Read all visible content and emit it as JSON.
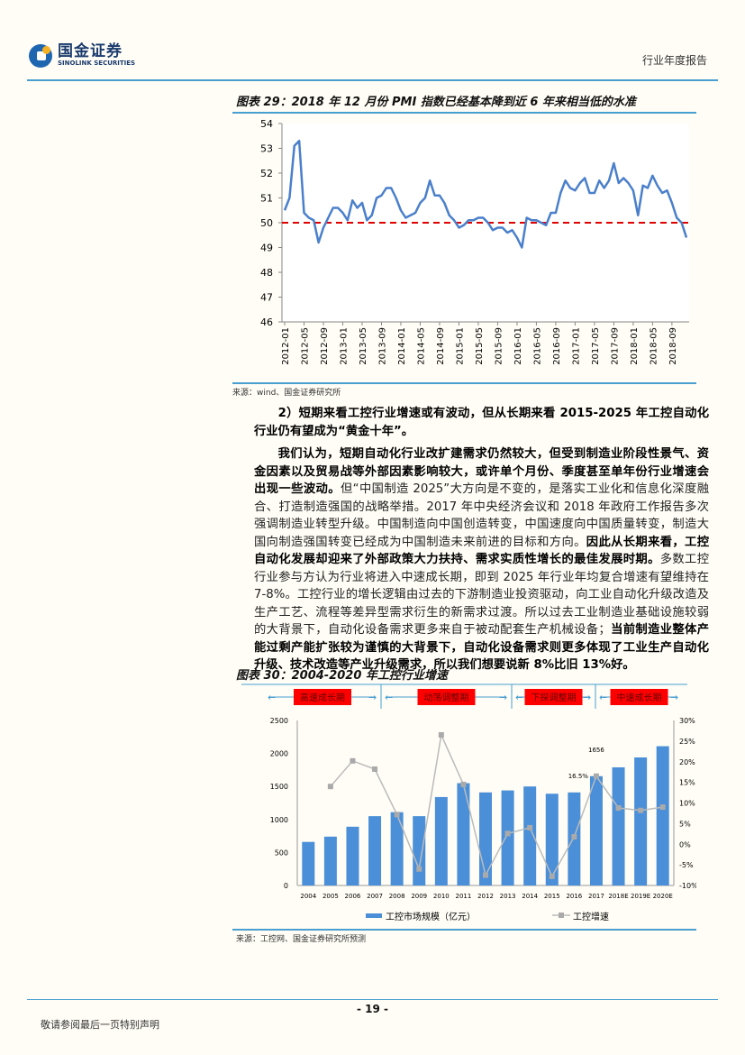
{
  "header": {
    "logo_cn": "国金证券",
    "logo_en": "SINOLINK SECURITIES",
    "report_type": "行业年度报告"
  },
  "figure29": {
    "title": "图表 29：2018 年 12 月份 PMI 指数已经基本降到近 6 年来相当低的水准",
    "source": "来源：wind、国金证券研究所"
  },
  "figure30": {
    "title": "图表 30：2004-2020 年工控行业增速",
    "source": "来源：工控网、国金证券研究所预测",
    "periods": [
      "高速成长期",
      "动荡调整期",
      "下探调整期",
      "中速成长期"
    ],
    "legend": [
      "工控市场规模（亿元）",
      "工控增速"
    ]
  },
  "paragraphs": [
    {
      "bold": "2）短期来看工控行业增速或有波动，但从长期来看 2015-2025 年工控自动化行业仍有望成为“黄金十年”。",
      "normal": ""
    },
    {
      "bold": "我们认为，短期自动化行业改扩建需求仍然较大，但受到制造业阶段性景气、资金因素以及贸易战等外部因素影响较大，或许单个月份、季度甚至单年份行业增速会出现一些波动。",
      "normal": "但“中国制造 2025”大方向是不变的，是落实工业化和信息化深度融合、打造制造强国的战略举措。2017 年中央经济会议和 2018 年政府工作报告多次强调制造业转型升级。中国制造向中国创造转变，中国速度向中国质量转变，制造大国向制造强国转变已经成为中国制造未来前进的目标和方向。",
      "bold2": "因此从长期来看，工控自动化发展却迎来了外部政策大力扶持、需求实质性增长的最佳发展时期。",
      "normal2": "多数工控行业参与方认为行业将进入中速成长期，即到 2025 年行业年均复合增速有望维持在 7-8%。工控行业的增长逻辑由过去的下游制造业投资驱动，向工业自动化升级改造及生产工艺、流程等差异型需求衍生的新需求过渡。所以过去工业制造业基础设施较弱的大背景下，自动化设备需求更多来自于被动配套生产机械设备；",
      "bold3": "当前制造业整体产能过剩产能扩张较为谨慎的大背景下，自动化设备需求则更多体现了工业生产自动化升级、技术改造等产业升级需求，所以我们想要说新 8%比旧 13%好。"
    }
  ],
  "footer": {
    "page": "- 19 -",
    "disclaimer": "敬请参阅最后一页特别声明"
  },
  "chart_data": [
    {
      "type": "line",
      "title": "",
      "ylim": [
        46,
        54
      ],
      "yticks": [
        46,
        47,
        48,
        49,
        50,
        51,
        52,
        53,
        54
      ],
      "xticks": [
        "2012-01",
        "2012-05",
        "2012-09",
        "2013-01",
        "2013-05",
        "2013-09",
        "2014-01",
        "2014-05",
        "2014-09",
        "2015-01",
        "2015-05",
        "2015-09",
        "2016-01",
        "2016-05",
        "2016-09",
        "2017-01",
        "2017-05",
        "2017-09",
        "2018-01",
        "2018-05",
        "2018-09"
      ],
      "x_start": "2012-01",
      "x_end": "2018-12",
      "reference_line": 50,
      "series_color": "#4a7fcb",
      "reference_color": "#e00000",
      "values": [
        50.5,
        51.0,
        53.1,
        53.3,
        50.4,
        50.2,
        50.1,
        49.2,
        49.8,
        50.2,
        50.6,
        50.6,
        50.4,
        50.1,
        50.9,
        50.6,
        50.8,
        50.1,
        50.3,
        51.0,
        51.1,
        51.4,
        51.4,
        51.0,
        50.5,
        50.2,
        50.3,
        50.4,
        50.8,
        51.0,
        51.7,
        51.1,
        51.1,
        50.8,
        50.3,
        50.1,
        49.8,
        49.9,
        50.1,
        50.1,
        50.2,
        50.2,
        50.0,
        49.7,
        49.8,
        49.8,
        49.6,
        49.7,
        49.4,
        49.0,
        50.2,
        50.1,
        50.1,
        50.0,
        49.9,
        50.4,
        50.4,
        51.2,
        51.7,
        51.4,
        51.3,
        51.6,
        51.8,
        51.2,
        51.2,
        51.7,
        51.4,
        51.7,
        52.4,
        51.6,
        51.8,
        51.6,
        51.3,
        50.3,
        51.5,
        51.4,
        51.9,
        51.5,
        51.2,
        51.3,
        50.8,
        50.2,
        50.0,
        49.4
      ]
    },
    {
      "type": "bar+line",
      "title": "",
      "categories": [
        "2004",
        "2005",
        "2006",
        "2007",
        "2008",
        "2009",
        "2010",
        "2011",
        "2012",
        "2013",
        "2014",
        "2015",
        "2016",
        "2017",
        "2018E",
        "2019E",
        "2020E"
      ],
      "ylim_left": [
        0,
        2500
      ],
      "yticks_left": [
        0,
        500,
        1000,
        1500,
        2000,
        2500
      ],
      "ylim_right": [
        -10,
        30
      ],
      "yticks_right": [
        "-10%",
        "-5%",
        "0%",
        "5%",
        "10%",
        "15%",
        "20%",
        "25%",
        "30%"
      ],
      "series": [
        {
          "name": "工控市场规模（亿元）",
          "axis": "left",
          "color": "#4a8fd8",
          "values": [
            660,
            740,
            890,
            1050,
            1110,
            1050,
            1340,
            1550,
            1410,
            1440,
            1500,
            1390,
            1410,
            1656,
            1790,
            1940,
            2110
          ]
        },
        {
          "name": "工控增速",
          "axis": "right",
          "color": "#bbbbbb",
          "values": [
            null,
            14.0,
            20.2,
            18.2,
            7.2,
            -6.0,
            26.5,
            14.5,
            -7.5,
            2.6,
            4.0,
            -7.8,
            1.8,
            16.5,
            8.8,
            8.2,
            9.0
          ]
        }
      ],
      "annotations": [
        {
          "category": "2017",
          "label": "1656"
        },
        {
          "category": "2017",
          "label": "16.5%"
        }
      ]
    }
  ]
}
